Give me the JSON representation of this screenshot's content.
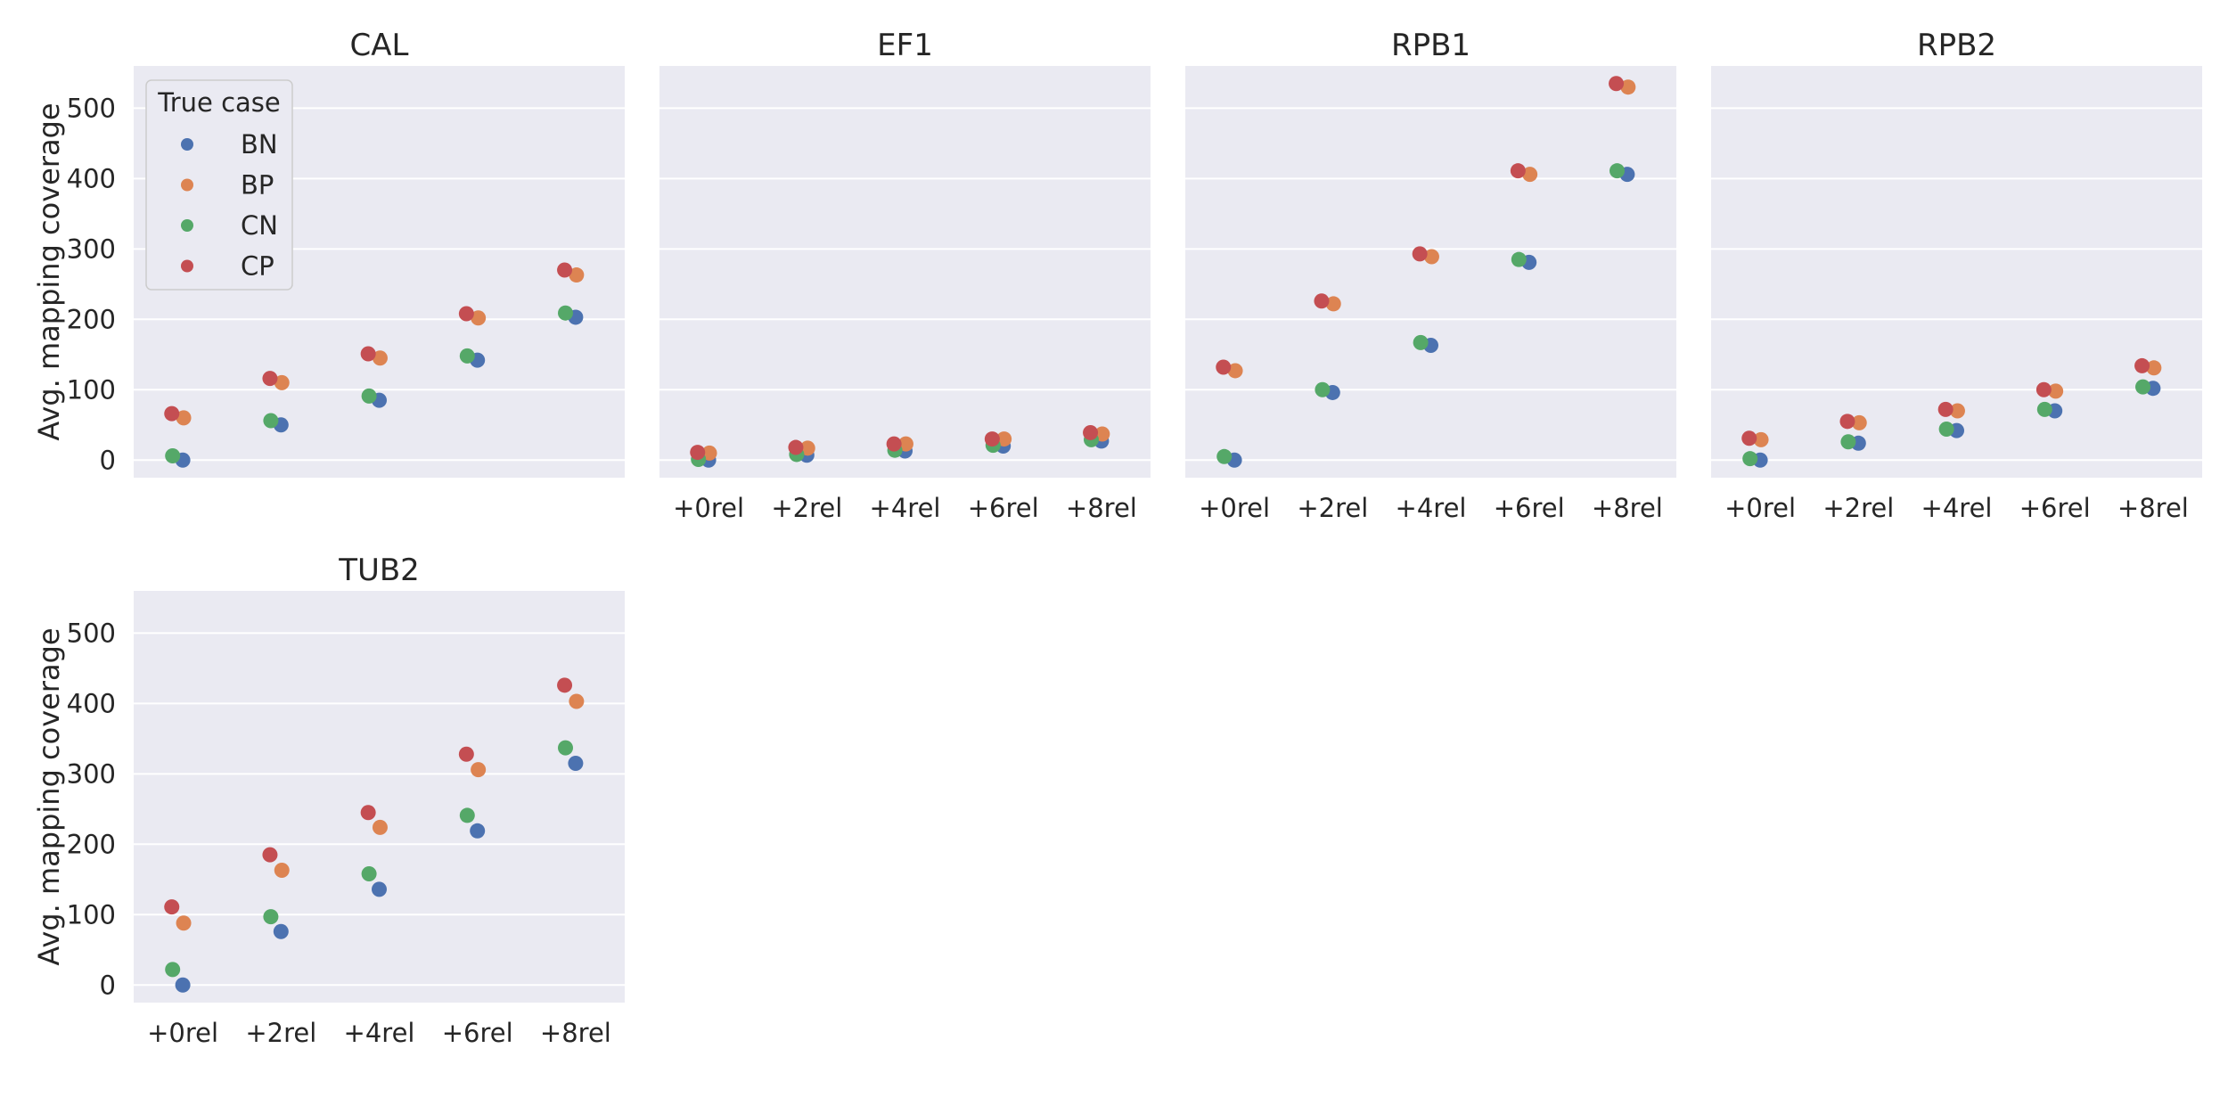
{
  "chart_data": {
    "type": "scatter",
    "subtype": "faceted-strip",
    "ylabel": "Avg. mapping coverage",
    "ylim": [
      -25,
      560
    ],
    "y_ticks": [
      0,
      100,
      200,
      300,
      400,
      500
    ],
    "x_ticks": [
      "+0rel",
      "+2rel",
      "+4rel",
      "+6rel",
      "+8rel"
    ],
    "grid": true,
    "legend": {
      "title": "True case",
      "placement": "top-left of first panel",
      "entries": [
        "BN",
        "BP",
        "CN",
        "CP"
      ]
    },
    "colors": {
      "BN": "#4c72b0",
      "BP": "#dd8452",
      "CN": "#55a868",
      "CP": "#c44e52"
    },
    "panels": [
      {
        "title": "CAL",
        "series": [
          {
            "name": "BN",
            "values": [
              0,
              50,
              85,
              142,
              203
            ]
          },
          {
            "name": "BP",
            "values": [
              60,
              110,
              145,
              202,
              263
            ]
          },
          {
            "name": "CN",
            "values": [
              6,
              56,
              91,
              148,
              209
            ]
          },
          {
            "name": "CP",
            "values": [
              66,
              116,
              151,
              208,
              270
            ]
          }
        ]
      },
      {
        "title": "EF1",
        "series": [
          {
            "name": "BN",
            "values": [
              0,
              7,
              13,
              20,
              27
            ]
          },
          {
            "name": "BP",
            "values": [
              10,
              17,
              23,
              30,
              37
            ]
          },
          {
            "name": "CN",
            "values": [
              1,
              8,
              14,
              21,
              29
            ]
          },
          {
            "name": "CP",
            "values": [
              11,
              18,
              23,
              30,
              39
            ]
          }
        ]
      },
      {
        "title": "RPB1",
        "series": [
          {
            "name": "BN",
            "values": [
              0,
              96,
              163,
              281,
              406
            ]
          },
          {
            "name": "BP",
            "values": [
              127,
              222,
              289,
              406,
              530
            ]
          },
          {
            "name": "CN",
            "values": [
              5,
              100,
              167,
              285,
              411
            ]
          },
          {
            "name": "CP",
            "values": [
              132,
              226,
              293,
              411,
              535
            ]
          }
        ]
      },
      {
        "title": "RPB2",
        "series": [
          {
            "name": "BN",
            "values": [
              0,
              24,
              42,
              70,
              102
            ]
          },
          {
            "name": "BP",
            "values": [
              29,
              53,
              70,
              98,
              131
            ]
          },
          {
            "name": "CN",
            "values": [
              2,
              26,
              44,
              72,
              104
            ]
          },
          {
            "name": "CP",
            "values": [
              31,
              55,
              72,
              100,
              134
            ]
          }
        ]
      },
      {
        "title": "TUB2",
        "series": [
          {
            "name": "BN",
            "values": [
              0,
              76,
              136,
              219,
              315
            ]
          },
          {
            "name": "BP",
            "values": [
              88,
              163,
              224,
              306,
              403
            ]
          },
          {
            "name": "CN",
            "values": [
              22,
              97,
              158,
              241,
              337
            ]
          },
          {
            "name": "CP",
            "values": [
              111,
              185,
              245,
              328,
              426
            ]
          }
        ]
      }
    ]
  }
}
